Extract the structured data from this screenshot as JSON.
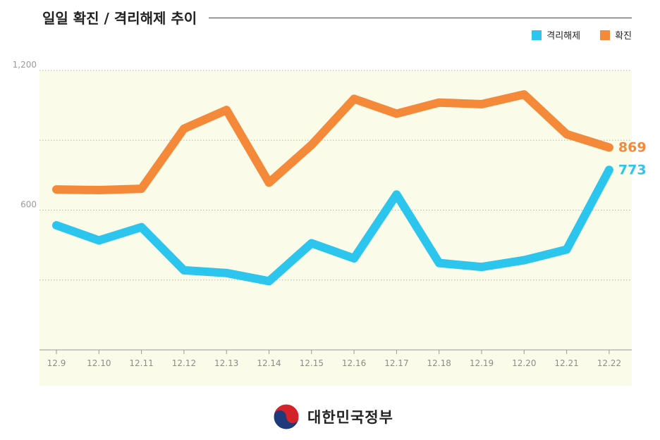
{
  "title": "일일 확진 / 격리해제 추이",
  "legend": [
    {
      "label": "격리해제",
      "color": "#2cc5ee"
    },
    {
      "label": "확진",
      "color": "#f5893a"
    }
  ],
  "footer": {
    "org": "대한민국정부"
  },
  "chart_data": {
    "type": "line",
    "title": "일일 확진 / 격리해제 추이",
    "categories": [
      "12.9",
      "12.10",
      "12.11",
      "12.12",
      "12.13",
      "12.14",
      "12.15",
      "12.16",
      "12.17",
      "12.18",
      "12.19",
      "12.20",
      "12.21",
      "12.22"
    ],
    "ylim": [
      0,
      1200
    ],
    "yticks": [
      {
        "value": 0,
        "label": ""
      },
      {
        "value": 300,
        "label": ""
      },
      {
        "value": 600,
        "label": "600"
      },
      {
        "value": 900,
        "label": ""
      },
      {
        "value": 1200,
        "label": "1,200"
      }
    ],
    "series": [
      {
        "name": "격리해제",
        "color": "#2cc5ee",
        "values": [
          535,
          470,
          527,
          342,
          330,
          295,
          458,
          393,
          667,
          373,
          356,
          385,
          431,
          773
        ],
        "end_label": "773"
      },
      {
        "name": "확진",
        "color": "#f5893a",
        "values": [
          689,
          686,
          692,
          950,
          1030,
          718,
          880,
          1078,
          1014,
          1062,
          1055,
          1097,
          926,
          869
        ],
        "end_label": "869"
      }
    ],
    "xlabel": "",
    "ylabel": "",
    "grid": true
  }
}
